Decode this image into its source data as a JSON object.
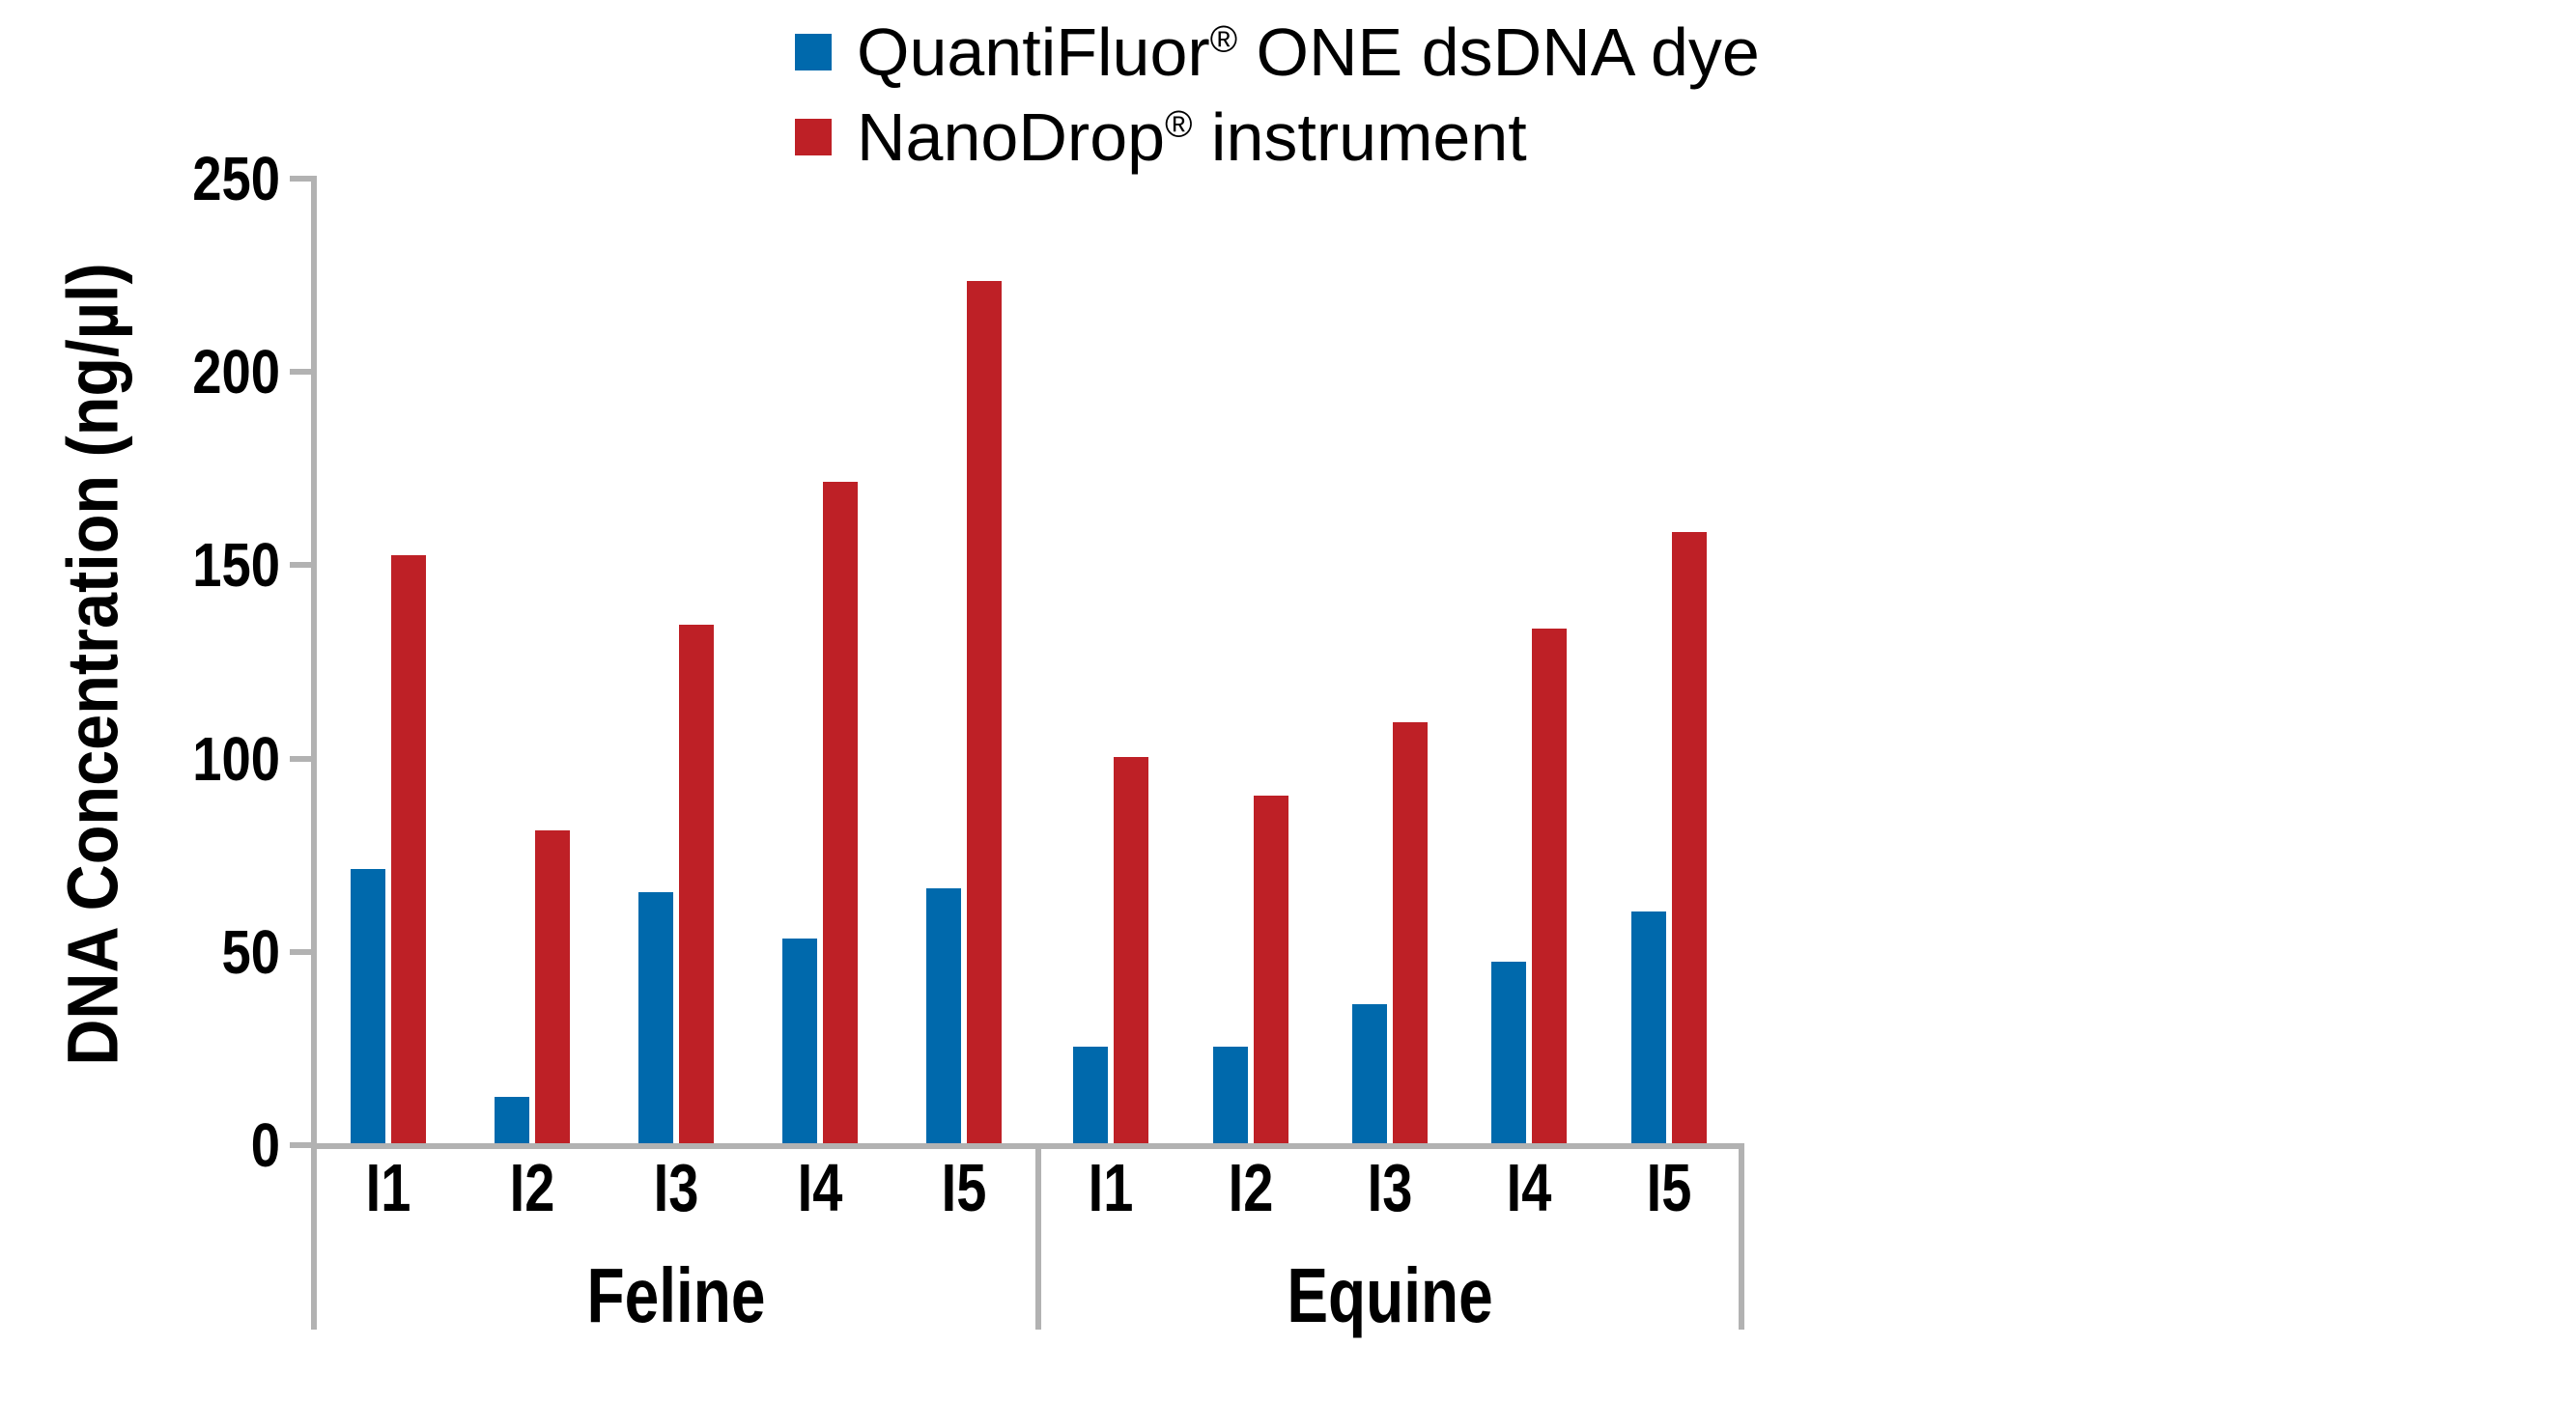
{
  "legend": {
    "items": [
      {
        "label": "QuantiFluor® ONE dsDNA dye",
        "swatch": "blue-square",
        "color": "#0069AC"
      },
      {
        "label": "NanoDrop® instrument",
        "swatch": "red-square",
        "color": "#BE2026"
      }
    ]
  },
  "y_axis": {
    "title": "DNA Concentration (ng/µl)",
    "min": 0,
    "max": 250,
    "tick_step": 50,
    "tick_labels": [
      "0",
      "50",
      "100",
      "150",
      "200",
      "250"
    ]
  },
  "x_axis": {
    "groups": [
      {
        "label": "Feline",
        "samples": [
          "I1",
          "I2",
          "I3",
          "I4",
          "I5"
        ]
      },
      {
        "label": "Equine",
        "samples": [
          "I1",
          "I2",
          "I3",
          "I4",
          "I5"
        ]
      }
    ]
  },
  "colors": {
    "axis": "#B2B2B2",
    "text": "#000000",
    "blue": "#0069AC",
    "red": "#BE2026",
    "background": "#FFFFFF"
  },
  "chart_data": {
    "type": "bar",
    "title": "",
    "xlabel": "",
    "ylabel": "DNA Concentration (ng/µl)",
    "ylim": [
      0,
      250
    ],
    "grid": false,
    "legend_position": "top-center",
    "group_labels": [
      "Feline",
      "Equine"
    ],
    "categories": [
      "Feline I1",
      "Feline I2",
      "Feline I3",
      "Feline I4",
      "Feline I5",
      "Equine I1",
      "Equine I2",
      "Equine I3",
      "Equine I4",
      "Equine I5"
    ],
    "series": [
      {
        "name": "QuantiFluor® ONE dsDNA dye",
        "color": "#0069AC",
        "values": [
          72,
          13,
          66,
          54,
          67,
          26,
          26,
          37,
          48,
          61
        ]
      },
      {
        "name": "NanoDrop® instrument",
        "color": "#BE2026",
        "values": [
          153,
          82,
          135,
          172,
          224,
          101,
          91,
          110,
          134,
          159
        ]
      }
    ]
  }
}
